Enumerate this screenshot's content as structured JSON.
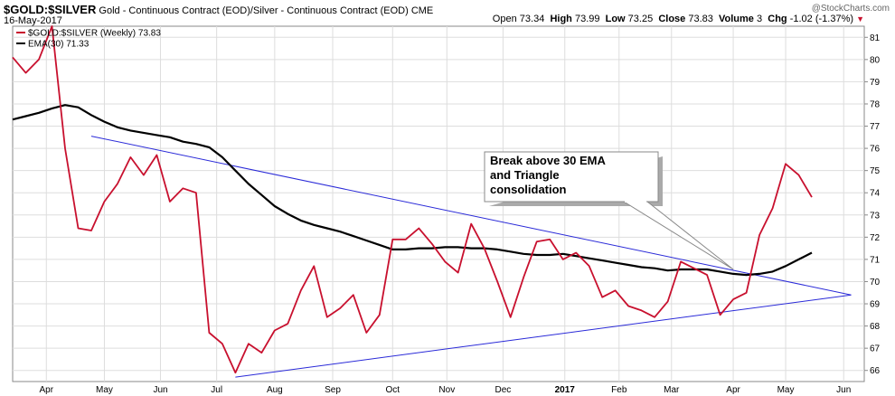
{
  "header": {
    "symbol": "$GOLD:$SILVER",
    "description": "Gold - Continuous Contract (EOD)/Silver - Continuous Contract (EOD)",
    "exchange": "CME",
    "date": "16-May-2017",
    "brand": "@StockCharts.com",
    "open_label": "Open",
    "open": "73.34",
    "high_label": "High",
    "high": "73.99",
    "low_label": "Low",
    "low": "73.25",
    "close_label": "Close",
    "close": "73.83",
    "volume_label": "Volume",
    "volume": "3",
    "chg_label": "Chg",
    "chg": "-1.02 (-1.37%)"
  },
  "colors": {
    "price": "#c8102e",
    "ema": "#000000",
    "trendline": "#2a2ad8",
    "grid": "#dddddd"
  },
  "chart_data": {
    "type": "line",
    "grid": true,
    "ylim": [
      65.5,
      81.5
    ],
    "yticks": [
      66,
      67,
      68,
      69,
      70,
      71,
      72,
      73,
      74,
      75,
      76,
      77,
      78,
      79,
      80,
      81
    ],
    "xlim": [
      "2016-03-14",
      "2017-06-12"
    ],
    "xtick_labels": [
      {
        "label": "Apr",
        "date": "2016-04-01"
      },
      {
        "label": "May",
        "date": "2016-05-02"
      },
      {
        "label": "Jun",
        "date": "2016-06-01"
      },
      {
        "label": "Jul",
        "date": "2016-07-01"
      },
      {
        "label": "Aug",
        "date": "2016-08-01"
      },
      {
        "label": "Sep",
        "date": "2016-09-01"
      },
      {
        "label": "Oct",
        "date": "2016-10-03"
      },
      {
        "label": "Nov",
        "date": "2016-11-01"
      },
      {
        "label": "Dec",
        "date": "2016-12-01"
      },
      {
        "label": "2017",
        "date": "2017-01-03",
        "bold": true
      },
      {
        "label": "Feb",
        "date": "2017-02-01"
      },
      {
        "label": "Mar",
        "date": "2017-03-01"
      },
      {
        "label": "Apr",
        "date": "2017-04-03"
      },
      {
        "label": "May",
        "date": "2017-05-01"
      },
      {
        "label": "Jun",
        "date": "2017-06-01"
      }
    ],
    "series": [
      {
        "name": "$GOLD:$SILVER (Weekly) 73.83",
        "color": "#c8102e",
        "x": [
          "2016-03-14",
          "2016-03-21",
          "2016-03-28",
          "2016-04-04",
          "2016-04-11",
          "2016-04-18",
          "2016-04-25",
          "2016-05-02",
          "2016-05-09",
          "2016-05-16",
          "2016-05-23",
          "2016-05-30",
          "2016-06-06",
          "2016-06-13",
          "2016-06-20",
          "2016-06-27",
          "2016-07-04",
          "2016-07-11",
          "2016-07-18",
          "2016-07-25",
          "2016-08-01",
          "2016-08-08",
          "2016-08-15",
          "2016-08-22",
          "2016-08-29",
          "2016-09-05",
          "2016-09-12",
          "2016-09-19",
          "2016-09-26",
          "2016-10-03",
          "2016-10-10",
          "2016-10-17",
          "2016-10-24",
          "2016-10-31",
          "2016-11-07",
          "2016-11-14",
          "2016-11-21",
          "2016-11-28",
          "2016-12-05",
          "2016-12-12",
          "2016-12-19",
          "2016-12-26",
          "2017-01-02",
          "2017-01-09",
          "2017-01-16",
          "2017-01-23",
          "2017-01-30",
          "2017-02-06",
          "2017-02-13",
          "2017-02-20",
          "2017-02-27",
          "2017-03-06",
          "2017-03-13",
          "2017-03-20",
          "2017-03-27",
          "2017-04-03",
          "2017-04-10",
          "2017-04-17",
          "2017-04-24",
          "2017-05-01",
          "2017-05-08",
          "2017-05-15"
        ],
        "y": [
          80.1,
          79.4,
          80.0,
          81.5,
          76.0,
          72.4,
          72.3,
          73.6,
          74.4,
          75.6,
          74.8,
          75.7,
          73.6,
          74.2,
          74.0,
          67.7,
          67.2,
          65.9,
          67.2,
          66.8,
          67.8,
          68.1,
          69.6,
          70.7,
          68.4,
          68.8,
          69.4,
          67.7,
          68.5,
          71.9,
          71.9,
          72.4,
          71.7,
          70.9,
          70.4,
          72.6,
          71.5,
          70.0,
          68.4,
          70.2,
          71.8,
          71.9,
          71.0,
          71.3,
          70.7,
          69.3,
          69.6,
          68.9,
          68.7,
          68.4,
          69.1,
          70.9,
          70.6,
          70.3,
          68.5,
          69.2,
          69.5,
          72.1,
          73.3,
          75.3,
          74.8,
          73.8
        ]
      },
      {
        "name": "EMA(30) 71.33",
        "color": "#000000",
        "x": [
          "2016-03-14",
          "2016-03-21",
          "2016-03-28",
          "2016-04-04",
          "2016-04-11",
          "2016-04-18",
          "2016-04-25",
          "2016-05-02",
          "2016-05-09",
          "2016-05-16",
          "2016-05-23",
          "2016-05-30",
          "2016-06-06",
          "2016-06-13",
          "2016-06-20",
          "2016-06-27",
          "2016-07-04",
          "2016-07-11",
          "2016-07-18",
          "2016-07-25",
          "2016-08-01",
          "2016-08-08",
          "2016-08-15",
          "2016-08-22",
          "2016-08-29",
          "2016-09-05",
          "2016-09-12",
          "2016-09-19",
          "2016-09-26",
          "2016-10-03",
          "2016-10-10",
          "2016-10-17",
          "2016-10-24",
          "2016-10-31",
          "2016-11-07",
          "2016-11-14",
          "2016-11-21",
          "2016-11-28",
          "2016-12-05",
          "2016-12-12",
          "2016-12-19",
          "2016-12-26",
          "2017-01-02",
          "2017-01-09",
          "2017-01-16",
          "2017-01-23",
          "2017-01-30",
          "2017-02-06",
          "2017-02-13",
          "2017-02-20",
          "2017-02-27",
          "2017-03-06",
          "2017-03-13",
          "2017-03-20",
          "2017-03-27",
          "2017-04-03",
          "2017-04-10",
          "2017-04-17",
          "2017-04-24",
          "2017-05-01",
          "2017-05-08",
          "2017-05-15"
        ],
        "y": [
          77.3,
          77.45,
          77.6,
          77.8,
          77.95,
          77.85,
          77.5,
          77.2,
          76.95,
          76.8,
          76.7,
          76.6,
          76.5,
          76.3,
          76.2,
          76.05,
          75.6,
          75.0,
          74.4,
          73.9,
          73.4,
          73.05,
          72.75,
          72.55,
          72.4,
          72.25,
          72.05,
          71.85,
          71.65,
          71.45,
          71.45,
          71.5,
          71.5,
          71.55,
          71.55,
          71.5,
          71.5,
          71.45,
          71.35,
          71.25,
          71.2,
          71.2,
          71.25,
          71.15,
          71.05,
          70.95,
          70.85,
          70.75,
          70.65,
          70.6,
          70.5,
          70.55,
          70.55,
          70.55,
          70.45,
          70.35,
          70.3,
          70.35,
          70.45,
          70.7,
          71.0,
          71.3
        ]
      }
    ],
    "trendlines": [
      {
        "name": "upper-trendline",
        "x": [
          "2016-04-25",
          "2017-06-05"
        ],
        "y": [
          76.55,
          69.4
        ]
      },
      {
        "name": "lower-trendline",
        "x": [
          "2016-07-11",
          "2017-06-05"
        ],
        "y": [
          65.7,
          69.4
        ]
      }
    ],
    "annotation": {
      "lines": [
        "Break above 30 EMA",
        "and Triangle",
        "consolidation"
      ]
    }
  }
}
